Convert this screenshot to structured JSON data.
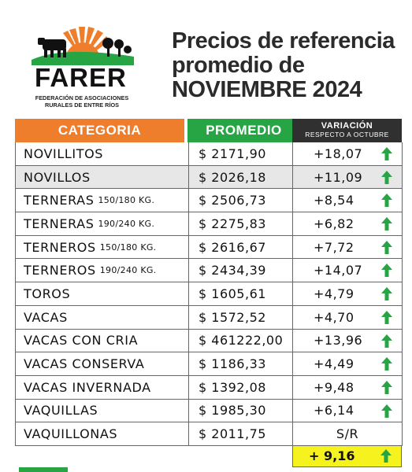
{
  "logo": {
    "name": "FARER",
    "subtitle_line1": "FEDERACIÓN DE ASOCIACIONES",
    "subtitle_line2": "RURALES DE ENTRE RÍOS"
  },
  "title": {
    "line1": "Precios de referencia",
    "line2": "promedio de",
    "line3": "NOVIEMBRE 2024"
  },
  "table": {
    "headers": {
      "category": "CATEGORIA",
      "average": "PROMEDIO",
      "variation": "VARIACIÓN",
      "variation_sub": "RESPECTO A OCTUBRE"
    },
    "rows": [
      {
        "category": "NOVILLITOS",
        "detail": "",
        "average": "$ 2171,90",
        "variation": "+18,07",
        "trend": "up"
      },
      {
        "category": "NOVILLOS",
        "detail": "",
        "average": "$ 2026,18",
        "variation": "+11,09",
        "trend": "up"
      },
      {
        "category": "TERNERAS",
        "detail": "150/180 KG.",
        "average": "$ 2506,73",
        "variation": "+8,54",
        "trend": "up"
      },
      {
        "category": "TERNERAS",
        "detail": "190/240 KG.",
        "average": "$ 2275,83",
        "variation": "+6,82",
        "trend": "up"
      },
      {
        "category": "TERNEROS",
        "detail": "150/180 KG.",
        "average": "$ 2616,67",
        "variation": "+7,72",
        "trend": "up"
      },
      {
        "category": "TERNEROS",
        "detail": "190/240 KG.",
        "average": "$ 2434,39",
        "variation": "+14,07",
        "trend": "up"
      },
      {
        "category": "TOROS",
        "detail": "",
        "average": "$ 1605,61",
        "variation": "+4,79",
        "trend": "up"
      },
      {
        "category": "VACAS",
        "detail": "",
        "average": "$ 1572,52",
        "variation": "+4,70",
        "trend": "up"
      },
      {
        "category": "VACAS CON CRIA",
        "detail": "",
        "average": "$ 461222,00",
        "variation": "+13,96",
        "trend": "up"
      },
      {
        "category": "VACAS CONSERVA",
        "detail": "",
        "average": "$ 1186,33",
        "variation": "+4,49",
        "trend": "up"
      },
      {
        "category": "VACAS INVERNADA",
        "detail": "",
        "average": "$ 1392,08",
        "variation": "+9,48",
        "trend": "up"
      },
      {
        "category": "VAQUILLAS",
        "detail": "",
        "average": "$ 1985,30",
        "variation": "+6,14",
        "trend": "up"
      },
      {
        "category": "VAQUILLONAS",
        "detail": "",
        "average": "$ 2011,75",
        "variation": "S/R",
        "trend": "none"
      }
    ],
    "total_variation": "+ 9,16",
    "total_trend": "up"
  },
  "colors": {
    "orange": "#ee7d2c",
    "green": "#27a545",
    "dark": "#303030",
    "yellow": "#f6f21e",
    "row_shade": "#e7e7e7"
  }
}
